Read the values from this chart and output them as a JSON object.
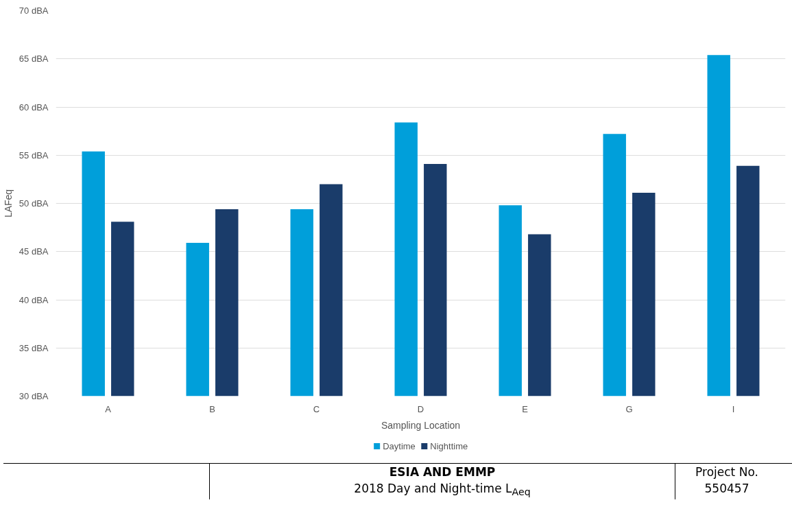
{
  "chart_data": {
    "type": "bar",
    "xlabel": "Sampling Location",
    "ylabel": "LAFeq",
    "categories": [
      "A",
      "B",
      "C",
      "D",
      "E",
      "G",
      "I"
    ],
    "series": [
      {
        "name": "Daytime",
        "color": "#009fda",
        "values": [
          55.4,
          45.9,
          49.4,
          58.4,
          49.8,
          57.2,
          65.4
        ]
      },
      {
        "name": "Nighttime",
        "color": "#1a3c6a",
        "values": [
          48.1,
          49.4,
          52.0,
          54.1,
          46.8,
          51.1,
          53.9
        ]
      }
    ],
    "ylim": [
      30,
      70
    ],
    "yticks": [
      {
        "value": 30,
        "label": "30 dBA"
      },
      {
        "value": 35,
        "label": "35 dBA"
      },
      {
        "value": 40,
        "label": "40 dBA"
      },
      {
        "value": 45,
        "label": "45 dBA"
      },
      {
        "value": 50,
        "label": "50 dBA"
      },
      {
        "value": 55,
        "label": "55 dBA"
      },
      {
        "value": 60,
        "label": "60 dBA"
      },
      {
        "value": 65,
        "label": "65 dBA"
      },
      {
        "value": 70,
        "label": "70 dBA"
      }
    ],
    "grid": "y",
    "legend": "bottom",
    "annotations": [
      "ESIA AND EMMP",
      "2018 Day and Night-time L$_{Aeq}$",
      "Project No. 550457"
    ]
  }
}
